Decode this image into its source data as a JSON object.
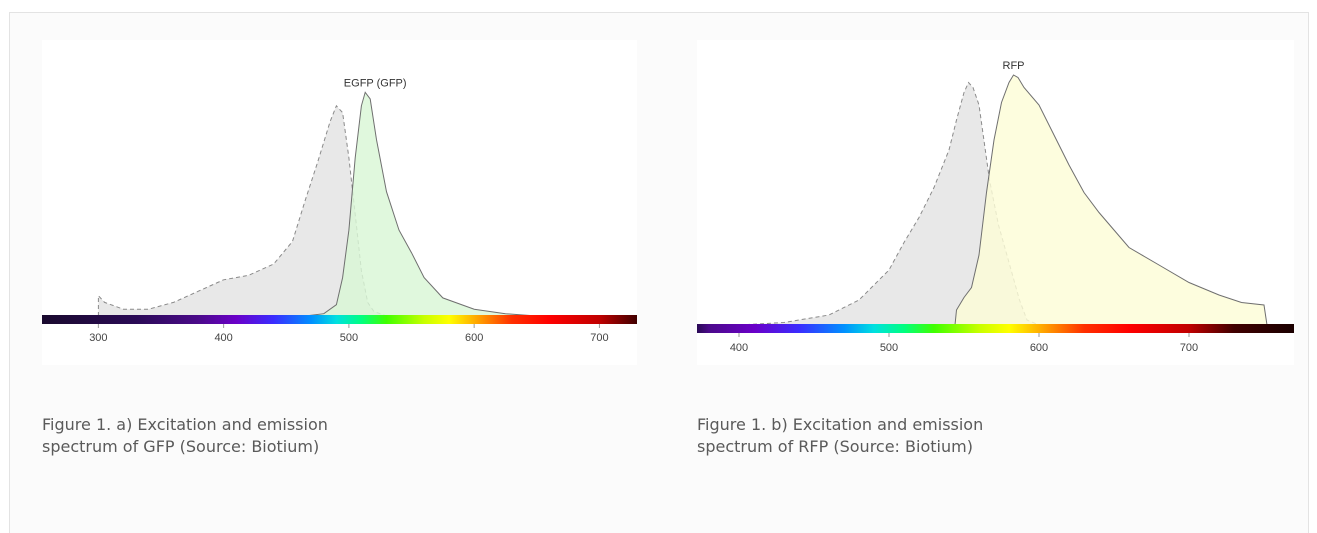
{
  "chart_data": [
    {
      "type": "area",
      "title": "EGFP (GFP)",
      "xlabel": "",
      "ylabel": "",
      "xlim": [
        255,
        730
      ],
      "ylim": [
        0,
        100
      ],
      "xticks": [
        300,
        400,
        500,
        600,
        700
      ],
      "grid": false,
      "series": [
        {
          "role": "excitation",
          "style": "dashed",
          "color": "#e8e8e8",
          "stroke": "#8a8a8a",
          "points": [
            [
              300,
              0
            ],
            [
              300,
              9
            ],
            [
              305,
              6
            ],
            [
              320,
              3
            ],
            [
              340,
              3
            ],
            [
              360,
              6
            ],
            [
              380,
              11
            ],
            [
              400,
              16
            ],
            [
              420,
              18
            ],
            [
              440,
              23
            ],
            [
              455,
              33
            ],
            [
              465,
              51
            ],
            [
              475,
              68
            ],
            [
              485,
              86
            ],
            [
              490,
              93
            ],
            [
              495,
              90
            ],
            [
              500,
              70
            ],
            [
              505,
              45
            ],
            [
              510,
              20
            ],
            [
              515,
              6
            ],
            [
              520,
              2
            ],
            [
              530,
              0
            ]
          ]
        },
        {
          "role": "emission",
          "style": "solid",
          "color": "#d9f7d5",
          "stroke": "#6f6f6f",
          "points": [
            [
              465,
              0
            ],
            [
              480,
              1
            ],
            [
              490,
              5
            ],
            [
              495,
              17
            ],
            [
              500,
              38
            ],
            [
              505,
              70
            ],
            [
              510,
              93
            ],
            [
              513,
              99
            ],
            [
              517,
              96
            ],
            [
              522,
              78
            ],
            [
              530,
              55
            ],
            [
              540,
              38
            ],
            [
              550,
              28
            ],
            [
              560,
              17
            ],
            [
              575,
              8
            ],
            [
              600,
              3
            ],
            [
              625,
              1
            ],
            [
              650,
              0
            ]
          ]
        }
      ]
    },
    {
      "type": "area",
      "title": "RFP",
      "xlabel": "",
      "ylabel": "",
      "xlim": [
        372,
        770
      ],
      "ylim": [
        0,
        100
      ],
      "xticks": [
        400,
        500,
        600,
        700
      ],
      "grid": false,
      "series": [
        {
          "role": "excitation",
          "style": "dashed",
          "color": "#e8e8e8",
          "stroke": "#8a8a8a",
          "points": [
            [
              400,
              0
            ],
            [
              430,
              1
            ],
            [
              460,
              4
            ],
            [
              480,
              10
            ],
            [
              500,
              22
            ],
            [
              510,
              33
            ],
            [
              520,
              43
            ],
            [
              530,
              55
            ],
            [
              540,
              70
            ],
            [
              545,
              82
            ],
            [
              550,
              93
            ],
            [
              553,
              97
            ],
            [
              556,
              95
            ],
            [
              560,
              88
            ],
            [
              567,
              58
            ],
            [
              573,
              40
            ],
            [
              580,
              25
            ],
            [
              587,
              10
            ],
            [
              592,
              2
            ],
            [
              600,
              0
            ]
          ]
        },
        {
          "role": "emission",
          "style": "solid",
          "color": "#fcfcd7",
          "stroke": "#6f6f6f",
          "points": [
            [
              544,
              0
            ],
            [
              545,
              6
            ],
            [
              550,
              11
            ],
            [
              555,
              15
            ],
            [
              560,
              28
            ],
            [
              565,
              53
            ],
            [
              570,
              74
            ],
            [
              575,
              89
            ],
            [
              580,
              97
            ],
            [
              583,
              100
            ],
            [
              586,
              99
            ],
            [
              590,
              95
            ],
            [
              600,
              88
            ],
            [
              610,
              76
            ],
            [
              620,
              64
            ],
            [
              630,
              53
            ],
            [
              640,
              45
            ],
            [
              650,
              38
            ],
            [
              660,
              31
            ],
            [
              680,
              24
            ],
            [
              700,
              17
            ],
            [
              720,
              12
            ],
            [
              735,
              9
            ],
            [
              750,
              8
            ],
            [
              752,
              0
            ]
          ]
        }
      ]
    }
  ],
  "captions": [
    {
      "line1": "Figure 1. a)  Excitation and emission",
      "line2": "spectrum of GFP (Source: Biotium)"
    },
    {
      "line1": "Figure 1. b)  Excitation and emission",
      "line2": "spectrum of RFP (Source: Biotium)"
    }
  ]
}
